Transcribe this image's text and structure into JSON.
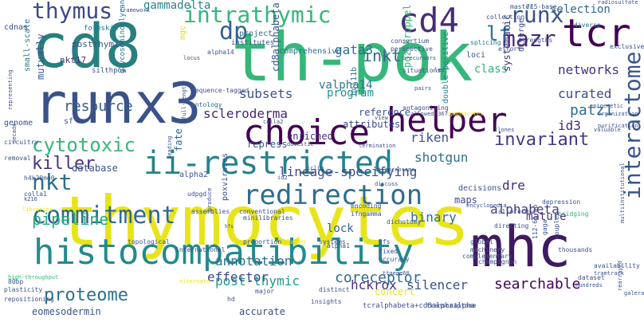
{
  "words": [
    {
      "text": "thymocytes",
      "color": "#e8e41c",
      "size": 86,
      "vertical": false
    },
    {
      "text": "th-pok",
      "color": "#35b779",
      "size": 84,
      "vertical": false
    },
    {
      "text": "cd8",
      "color": "#27807f",
      "size": 76,
      "vertical": false
    },
    {
      "text": "runx3",
      "color": "#3a5289",
      "size": 70,
      "vertical": false
    },
    {
      "text": "mhc",
      "color": "#3f1a60",
      "size": 70,
      "vertical": false
    },
    {
      "text": "histocompatibility",
      "color": "#238a8d",
      "size": 44,
      "vertical": false
    },
    {
      "text": "ii-restricted",
      "color": "#26828e",
      "size": 40,
      "vertical": false
    },
    {
      "text": "choice",
      "color": "#440154",
      "size": 44,
      "vertical": false
    },
    {
      "text": "helper",
      "color": "#440154",
      "size": 42,
      "vertical": false
    },
    {
      "text": "tcr",
      "color": "#440154",
      "size": 48,
      "vertical": false
    },
    {
      "text": "cd4",
      "color": "#472c7a",
      "size": 42,
      "vertical": false
    },
    {
      "text": "redirection",
      "color": "#2f6c8e",
      "size": 34,
      "vertical": false
    },
    {
      "text": "commitment",
      "color": "#31688e",
      "size": 30,
      "vertical": false
    },
    {
      "text": "interactome",
      "color": "#39568c",
      "size": 28,
      "vertical": true
    },
    {
      "text": "intrathymic",
      "color": "#35b779",
      "size": 28,
      "vertical": false
    },
    {
      "text": "proteome",
      "color": "#2c728e",
      "size": 22,
      "vertical": false
    },
    {
      "text": "runx",
      "color": "#3b528b",
      "size": 28,
      "vertical": false
    },
    {
      "text": "mazr",
      "color": "#482878",
      "size": 28,
      "vertical": false
    },
    {
      "text": "dp",
      "color": "#33638d",
      "size": 30,
      "vertical": false
    },
    {
      "text": "thymus",
      "color": "#3e4a89",
      "size": 28,
      "vertical": false
    },
    {
      "text": "lf",
      "color": "#2a788e",
      "size": 26,
      "vertical": false
    },
    {
      "text": "nkt",
      "color": "#2d708e",
      "size": 28,
      "vertical": false
    },
    {
      "text": "cytotoxic",
      "color": "#35b779",
      "size": 24,
      "vertical": false
    },
    {
      "text": "killer",
      "color": "#46327e",
      "size": 22,
      "vertical": false
    },
    {
      "text": "pipeline",
      "color": "#27ad81",
      "size": 20,
      "vertical": false
    },
    {
      "text": "invariant",
      "color": "#453781",
      "size": 22,
      "vertical": false
    },
    {
      "text": "inkt",
      "color": "#31688e",
      "size": 20,
      "vertical": false
    },
    {
      "text": "coreceptor",
      "color": "#2f6b8e",
      "size": 18,
      "vertical": false
    },
    {
      "text": "searchable",
      "color": "#440154",
      "size": 18,
      "vertical": false
    },
    {
      "text": "silencer",
      "color": "#3b528b",
      "size": 16,
      "vertical": false
    },
    {
      "text": "hckrox",
      "color": "#46307e",
      "size": 16,
      "vertical": false
    },
    {
      "text": "post-thymic",
      "color": "#1f9a8a",
      "size": 16,
      "vertical": false
    },
    {
      "text": "annotation",
      "color": "#2e6e8e",
      "size": 16,
      "vertical": false
    },
    {
      "text": "effector",
      "color": "#3f4889",
      "size": 16,
      "vertical": false
    },
    {
      "text": "eomesodermin",
      "color": "#3a548c",
      "size": 12,
      "vertical": false
    },
    {
      "text": "scleroderma",
      "color": "#482777",
      "size": 16,
      "vertical": false
    },
    {
      "text": "resource",
      "color": "#375a8c",
      "size": 18,
      "vertical": false
    },
    {
      "text": "subsets",
      "color": "#3b528b",
      "size": 16,
      "vertical": false
    },
    {
      "text": "gata3",
      "color": "#2d708e",
      "size": 16,
      "vertical": false
    },
    {
      "text": "gammadelta",
      "color": "#25838e",
      "size": 14,
      "vertical": false
    },
    {
      "text": "selection",
      "color": "#31688e",
      "size": 14,
      "vertical": false
    },
    {
      "text": "networks",
      "color": "#46327e",
      "size": 16,
      "vertical": false
    },
    {
      "text": "curated",
      "color": "#3e4a89",
      "size": 16,
      "vertical": false
    },
    {
      "text": "patz1",
      "color": "#2f6c8e",
      "size": 18,
      "vertical": false
    },
    {
      "text": "id3",
      "color": "#482878",
      "size": 16,
      "vertical": false
    },
    {
      "text": "riken",
      "color": "#3b528b",
      "size": 16,
      "vertical": false
    },
    {
      "text": "shotgun",
      "color": "#2d708e",
      "size": 16,
      "vertical": false
    },
    {
      "text": "lineage-specifying",
      "color": "#3e4a89",
      "size": 16,
      "vertical": false
    },
    {
      "text": "binary",
      "color": "#2f6c8e",
      "size": 16,
      "vertical": false
    },
    {
      "text": "alphabeta",
      "color": "#443983",
      "size": 16,
      "vertical": false
    },
    {
      "text": "dre",
      "color": "#482878",
      "size": 16,
      "vertical": false
    },
    {
      "text": "lock",
      "color": "#33638d",
      "size": 14,
      "vertical": false
    },
    {
      "text": "mature",
      "color": "#46337e",
      "size": 14,
      "vertical": false
    },
    {
      "text": "maps",
      "color": "#3f4788",
      "size": 12,
      "vertical": false
    },
    {
      "text": "enriched",
      "color": "#472d7b",
      "size": 12,
      "vertical": false
    },
    {
      "text": "program",
      "color": "#21918c",
      "size": 14,
      "vertical": false
    },
    {
      "text": "attributes",
      "color": "#3f4788",
      "size": 12,
      "vertical": false
    },
    {
      "text": "reference",
      "color": "#3a548c",
      "size": 12,
      "vertical": false
    },
    {
      "text": "repress",
      "color": "#3b528b",
      "size": 12,
      "vertical": false
    },
    {
      "text": "database",
      "color": "#3b528b",
      "size": 12,
      "vertical": false
    },
    {
      "text": "fate",
      "color": "#31688e",
      "size": 12,
      "vertical": true
    },
    {
      "text": "valpha14",
      "color": "#2a788e",
      "size": 14,
      "vertical": false
    },
    {
      "text": "class",
      "color": "#2fb47c",
      "size": 14,
      "vertical": false
    },
    {
      "text": "cd8alphabeta",
      "color": "#39568c",
      "size": 12,
      "vertical": true
    },
    {
      "text": "poz-kruppel",
      "color": "#35b779",
      "size": 12,
      "vertical": true
    },
    {
      "text": "bcl11b",
      "color": "#2a788e",
      "size": 10,
      "vertical": true
    },
    {
      "text": "double-positive",
      "color": "#25838e",
      "size": 10,
      "vertical": true
    },
    {
      "text": "systematic",
      "color": "#46337e",
      "size": 12,
      "vertical": true
    },
    {
      "text": "diverge",
      "color": "#3f4788",
      "size": 10,
      "vertical": true
    },
    {
      "text": "mutually",
      "color": "#3b528b",
      "size": 12,
      "vertical": true
    },
    {
      "text": "small-scale",
      "color": "#2a788e",
      "size": 10,
      "vertical": true
    },
    {
      "text": "cdnas",
      "color": "#3e4a89",
      "size": 10,
      "vertical": false
    },
    {
      "text": "postthymic",
      "color": "#3b528b",
      "size": 11,
      "vertical": false
    },
    {
      "text": "nkt17",
      "color": "#46327e",
      "size": 11,
      "vertical": false
    },
    {
      "text": "foreskin",
      "color": "#2a788e",
      "size": 9,
      "vertical": false
    },
    {
      "text": "silthpok",
      "color": "#3b528b",
      "size": 9,
      "vertical": false
    },
    {
      "text": "glycosaminoglycan",
      "color": "#2d708e",
      "size": 9,
      "vertical": true
    },
    {
      "text": "mgc",
      "color": "#d9e021",
      "size": 10,
      "vertical": true
    },
    {
      "text": "alpha14",
      "color": "#3b528b",
      "size": 8,
      "vertical": false
    },
    {
      "text": "institutes",
      "color": "#3b528b",
      "size": 9,
      "vertical": false
    },
    {
      "text": "project",
      "color": "#2d708e",
      "size": 10,
      "vertical": false
    },
    {
      "text": "comprehensive",
      "color": "#2d708e",
      "size": 10,
      "vertical": false
    },
    {
      "text": "consortium",
      "color": "#3b528b",
      "size": 8,
      "vertical": false
    },
    {
      "text": "perspective",
      "color": "#3b528b",
      "size": 8,
      "vertical": false
    },
    {
      "text": "splicing",
      "color": "#2d708e",
      "size": 8,
      "vertical": false
    },
    {
      "text": "loci",
      "color": "#3b528b",
      "size": 10,
      "vertical": false
    },
    {
      "text": "strengths",
      "color": "#3b528b",
      "size": 8,
      "vertical": false
    },
    {
      "text": "effort",
      "color": "#3b528b",
      "size": 8,
      "vertical": false
    },
    {
      "text": "exclusive",
      "color": "#3b528b",
      "size": 8,
      "vertical": false
    },
    {
      "text": "diverse",
      "color": "#2d708e",
      "size": 8,
      "vertical": false
    },
    {
      "text": "master",
      "color": "#3b528b",
      "size": 8,
      "vertical": false
    },
    {
      "text": "collection",
      "color": "#3b528b",
      "size": 8,
      "vertical": false
    },
    {
      "text": "715-base",
      "color": "#3b528b",
      "size": 8,
      "vertical": false
    },
    {
      "text": "framework",
      "color": "#3b528b",
      "size": 7,
      "vertical": false
    },
    {
      "text": "situations",
      "color": "#3b528b",
      "size": 8,
      "vertical": false
    },
    {
      "text": "sequence-tagged",
      "color": "#3b528b",
      "size": 8,
      "vertical": false
    },
    {
      "text": "ontology",
      "color": "#2d708e",
      "size": 8,
      "vertical": false
    },
    {
      "text": "genome",
      "color": "#3b528b",
      "size": 10,
      "vertical": false
    },
    {
      "text": "sf",
      "color": "#3b528b",
      "size": 10,
      "vertical": false
    },
    {
      "text": "circuitry",
      "color": "#3b528b",
      "size": 8,
      "vertical": false
    },
    {
      "text": "removal",
      "color": "#3b528b",
      "size": 8,
      "vertical": false
    },
    {
      "text": "alpha2",
      "color": "#3b528b",
      "size": 10,
      "vertical": false
    },
    {
      "text": "udpgd",
      "color": "#3b528b",
      "size": 8,
      "vertical": false
    },
    {
      "text": "poxviruses",
      "color": "#3b528b",
      "size": 10,
      "vertical": true
    },
    {
      "text": "hfs",
      "color": "#3b528b",
      "size": 6,
      "vertical": false
    },
    {
      "text": "assemblies",
      "color": "#3b528b",
      "size": 8,
      "vertical": false
    },
    {
      "text": "conventional",
      "color": "#3b528b",
      "size": 8,
      "vertical": false
    },
    {
      "text": "ifngamma",
      "color": "#3b528b",
      "size": 8,
      "vertical": false
    },
    {
      "text": "decisions",
      "color": "#3b528b",
      "size": 10,
      "vertical": false
    },
    {
      "text": "depression",
      "color": "#3b528b",
      "size": 8,
      "vertical": false
    },
    {
      "text": "encoding",
      "color": "#3b528b",
      "size": 8,
      "vertical": false
    },
    {
      "text": "encyclopedia",
      "color": "#3b528b",
      "size": 7,
      "vertical": false
    },
    {
      "text": "alloforms",
      "color": "#3b528b",
      "size": 8,
      "vertical": false
    },
    {
      "text": "bridging",
      "color": "#2fb47c",
      "size": 8,
      "vertical": false
    },
    {
      "text": "dichotomy",
      "color": "#3b528b",
      "size": 8,
      "vertical": false
    },
    {
      "text": "tfs",
      "color": "#3b528b",
      "size": 8,
      "vertical": false
    },
    {
      "text": "systems",
      "color": "#3b528b",
      "size": 8,
      "vertical": false
    },
    {
      "text": "global",
      "color": "#3b528b",
      "size": 8,
      "vertical": false
    },
    {
      "text": "directing",
      "color": "#3b528b",
      "size": 8,
      "vertical": false
    },
    {
      "text": "couples",
      "color": "#3b528b",
      "size": 8,
      "vertical": true
    },
    {
      "text": "112-61-bp",
      "color": "#3b528b",
      "size": 8,
      "vertical": true
    },
    {
      "text": "gaga",
      "color": "#3b528b",
      "size": 8,
      "vertical": true
    },
    {
      "text": "thousands",
      "color": "#3b528b",
      "size": 8,
      "vertical": false
    },
    {
      "text": "availability",
      "color": "#3b528b",
      "size": 8,
      "vertical": false
    },
    {
      "text": "tramtrack",
      "color": "#3b528b",
      "size": 7,
      "vertical": false
    },
    {
      "text": "dataset",
      "color": "#3b528b",
      "size": 8,
      "vertical": false
    },
    {
      "text": "hundreds",
      "color": "#3b528b",
      "size": 7,
      "vertical": false
    },
    {
      "text": "galera",
      "color": "#3b528b",
      "size": 7,
      "vertical": false
    },
    {
      "text": "rearrayed",
      "color": "#3b528b",
      "size": 7,
      "vertical": true
    },
    {
      "text": "multiinstitutional",
      "color": "#3b528b",
      "size": 7,
      "vertical": true
    },
    {
      "text": "fixed",
      "color": "#3b528b",
      "size": 8,
      "vertical": false
    },
    {
      "text": "accuracy",
      "color": "#3b528b",
      "size": 8,
      "vertical": false
    },
    {
      "text": "machinery",
      "color": "#3b528b",
      "size": 8,
      "vertical": false
    },
    {
      "text": "complementary",
      "color": "#3b528b",
      "size": 8,
      "vertical": false
    },
    {
      "text": "champignon",
      "color": "#3b528b",
      "size": 8,
      "vertical": false
    },
    {
      "text": "concert",
      "color": "#e8e41c",
      "size": 12,
      "vertical": false
    },
    {
      "text": "accurate",
      "color": "#3b528b",
      "size": 12,
      "vertical": false
    },
    {
      "text": "tcralphabeta+cd8alphaalpha",
      "color": "#3b528b",
      "size": 9,
      "vertical": false
    },
    {
      "text": "transcriptome",
      "color": "#3b528b",
      "size": 8,
      "vertical": false
    },
    {
      "text": "insights",
      "color": "#3b528b",
      "size": 8,
      "vertical": false
    },
    {
      "text": "collagen",
      "color": "#e8e41c",
      "size": 8,
      "vertical": false
    },
    {
      "text": "distinct",
      "color": "#3b528b",
      "size": 8,
      "vertical": false
    },
    {
      "text": "major",
      "color": "#3b528b",
      "size": 8,
      "vertical": false
    },
    {
      "text": "hd",
      "color": "#3b528b",
      "size": 8,
      "vertical": false
    },
    {
      "text": "repositioning",
      "color": "#3b528b",
      "size": 8,
      "vertical": false
    },
    {
      "text": "plasticity",
      "color": "#3b528b",
      "size": 8,
      "vertical": false
    },
    {
      "text": "80bp",
      "color": "#3b528b",
      "size": 8,
      "vertical": false
    },
    {
      "text": "high-throughput",
      "color": "#35b779",
      "size": 7,
      "vertical": false
    },
    {
      "text": "topological",
      "color": "#3b528b",
      "size": 8,
      "vertical": false
    },
    {
      "text": "international",
      "color": "#3b528b",
      "size": 8,
      "vertical": false
    },
    {
      "text": "alpha1",
      "color": "#3b528b",
      "size": 8,
      "vertical": false
    },
    {
      "text": "proportion",
      "color": "#3b528b",
      "size": 8,
      "vertical": false
    },
    {
      "text": "minilibraries",
      "color": "#3b528b",
      "size": 8,
      "vertical": false
    },
    {
      "text": "h4k20me0",
      "color": "#3b528b",
      "size": 8,
      "vertical": false
    },
    {
      "text": "k216",
      "color": "#3b528b",
      "size": 7,
      "vertical": false
    },
    {
      "text": "colla1",
      "color": "#3b528b",
      "size": 8,
      "vertical": false
    },
    {
      "text": "colla2",
      "color": "#3b528b",
      "size": 7,
      "vertical": false
    },
    {
      "text": "view",
      "color": "#3b528b",
      "size": 7,
      "vertical": false
    },
    {
      "text": "antagonizing",
      "color": "#3b528b",
      "size": 8,
      "vertical": false
    },
    {
      "text": "termination",
      "color": "#3b528b",
      "size": 7,
      "vertical": false
    },
    {
      "text": "domestic",
      "color": "#3b528b",
      "size": 7,
      "vertical": false
    },
    {
      "text": "clones",
      "color": "#3b528b",
      "size": 7,
      "vertical": false
    },
    {
      "text": "valuable",
      "color": "#3b528b",
      "size": 7,
      "vertical": false
    },
    {
      "text": "purification",
      "color": "#3b528b",
      "size": 7,
      "vertical": false
    },
    {
      "text": "organization",
      "color": "#3b528b",
      "size": 7,
      "vertical": false
    },
    {
      "text": "epigenetic",
      "color": "#3b528b",
      "size": 7,
      "vertical": false
    },
    {
      "text": "lymphocytes",
      "color": "#e8e41c",
      "size": 7,
      "vertical": false
    },
    {
      "text": "allowed",
      "color": "#3b528b",
      "size": 7,
      "vertical": false
    },
    {
      "text": "r367",
      "color": "#3b528b",
      "size": 7,
      "vertical": false
    },
    {
      "text": "pairs",
      "color": "#3b528b",
      "size": 7,
      "vertical": false
    },
    {
      "text": "decade",
      "color": "#3b528b",
      "size": 7,
      "vertical": true
    },
    {
      "text": "representing",
      "color": "#3b528b",
      "size": 7,
      "vertical": true
    },
    {
      "text": "full-length",
      "color": "#3b528b",
      "size": 7,
      "vertical": true
    },
    {
      "text": "reading",
      "color": "#3b528b",
      "size": 7,
      "vertical": true
    },
    {
      "text": "produce",
      "color": "#3b528b",
      "size": 7,
      "vertical": true
    },
    {
      "text": "silenceosome",
      "color": "#3b528b",
      "size": 7,
      "vertical": false
    },
    {
      "text": "discuss",
      "color": "#3b528b",
      "size": 7,
      "vertical": false
    },
    {
      "text": "locus",
      "color": "#3b528b",
      "size": 7,
      "vertical": false
    },
    {
      "text": "precursors",
      "color": "#3b528b",
      "size": 7,
      "vertical": false
    },
    {
      "text": "radiosulfate",
      "color": "#3b528b",
      "size": 7,
      "vertical": false
    },
    {
      "text": "id2",
      "color": "#3b528b",
      "size": 7,
      "vertical": false
    },
    {
      "text": "iclip",
      "color": "#3b528b",
      "size": 7,
      "vertical": false
    },
    {
      "text": "ttgene60",
      "color": "#3b528b",
      "size": 7,
      "vertical": false
    },
    {
      "text": "libraries",
      "color": "#e8e41c",
      "size": 7,
      "vertical": false
    },
    {
      "text": "alternate",
      "color": "#e8e41c",
      "size": 7,
      "vertical": false
    },
    {
      "text": "les",
      "color": "#3b528b",
      "size": 7,
      "vertical": false
    }
  ]
}
